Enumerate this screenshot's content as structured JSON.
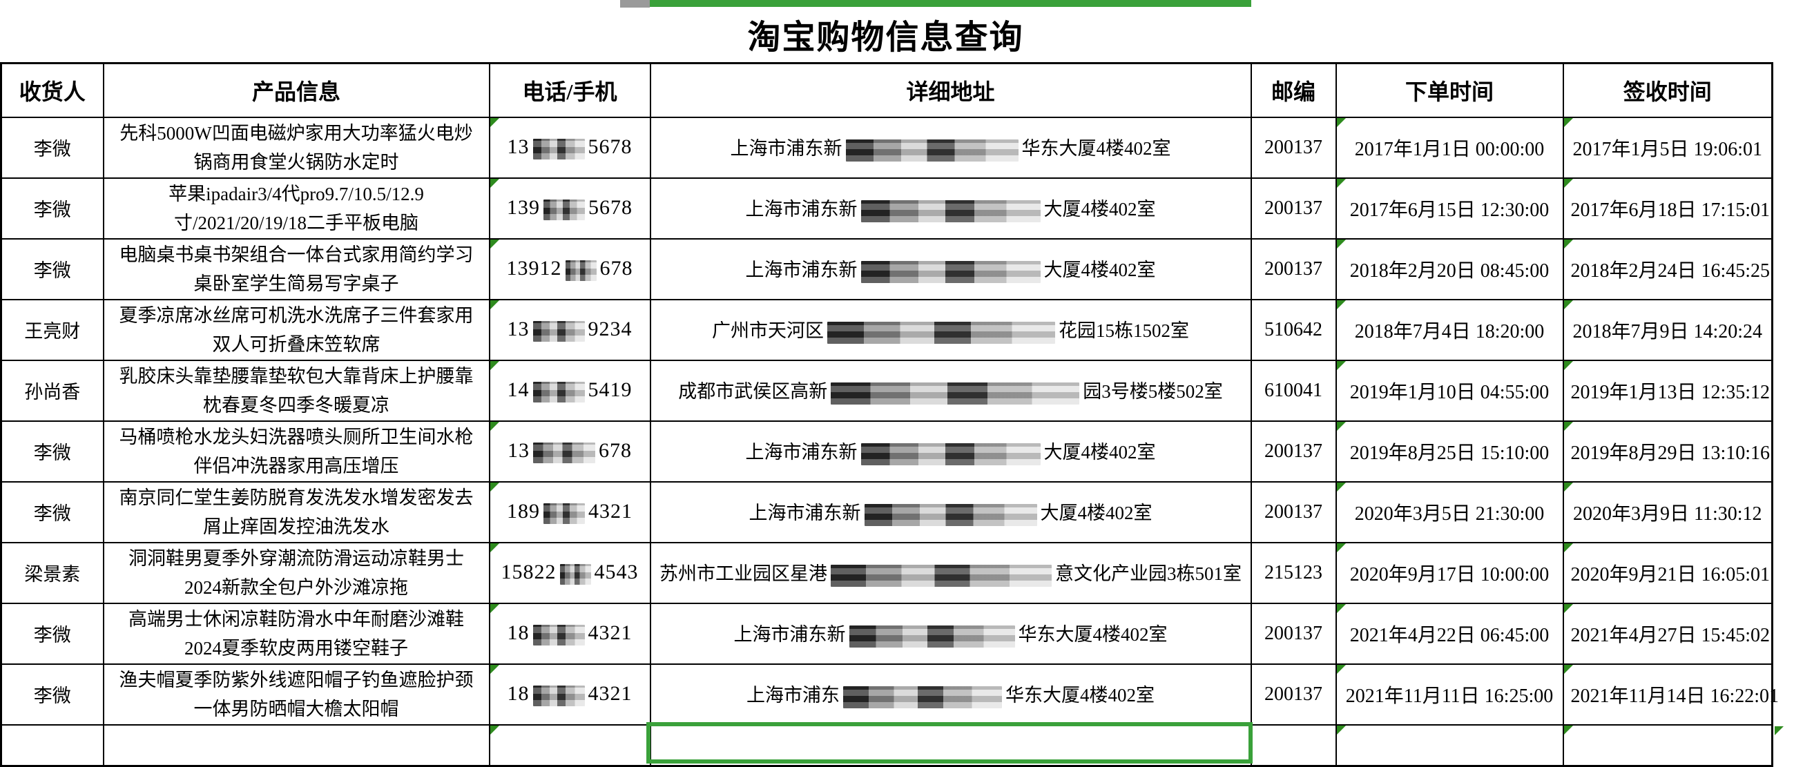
{
  "page": {
    "title": "淘宝购物信息查询"
  },
  "colors": {
    "selection_green": "#3aa13a",
    "triangle_green": "#2e8b1e"
  },
  "table": {
    "headers": [
      "收货人",
      "产品信息",
      "电话/手机",
      "详细地址",
      "邮编",
      "下单时间",
      "签收时间"
    ],
    "rows": [
      {
        "recipient": "李微",
        "product": "先科5000W凹面电磁炉家用大功率猛火电炒锅商用食堂火锅防水定时",
        "phone": {
          "prefix": "13",
          "suffix": "5678"
        },
        "address": {
          "prefix": "上海市浦东新",
          "suffix": "华东大厦4楼402室",
          "redact_w": 250
        },
        "postal": "200137",
        "order_time": "2017年1月1日 00:00:00",
        "sign_time": "2017年1月5日 19:06:01"
      },
      {
        "recipient": "李微",
        "product": "苹果ipadair3/4代pro9.7/10.5/12.9寸/2021/20/19/18二手平板电脑",
        "phone": {
          "prefix": "139",
          "suffix": "5678"
        },
        "address": {
          "prefix": "上海市浦东新",
          "suffix": "大厦4楼402室",
          "redact_w": 260
        },
        "postal": "200137",
        "order_time": "2017年6月15日 12:30:00",
        "sign_time": "2017年6月18日 17:15:01"
      },
      {
        "recipient": "李微",
        "product": "电脑桌书桌书架组合一体台式家用简约学习桌卧室学生简易写字桌子",
        "phone": {
          "prefix": "13912",
          "suffix": "678"
        },
        "address": {
          "prefix": "上海市浦东新",
          "suffix": "大厦4楼402室",
          "redact_w": 260
        },
        "postal": "200137",
        "order_time": "2018年2月20日 08:45:00",
        "sign_time": "2018年2月24日 16:45:25"
      },
      {
        "recipient": "王亮财",
        "product": "夏季凉席冰丝席可机洗水洗席子三件套家用双人可折叠床笠软席",
        "phone": {
          "prefix": "13",
          "suffix": "9234"
        },
        "address": {
          "prefix": "广州市天河区",
          "suffix": "花园15栋1502室",
          "redact_w": 330
        },
        "postal": "510642",
        "order_time": "2018年7月4日 18:20:00",
        "sign_time": "2018年7月9日 14:20:24"
      },
      {
        "recipient": "孙尚香",
        "product": "乳胶床头靠垫腰靠垫软包大靠背床上护腰靠枕春夏冬四季冬暖夏凉",
        "phone": {
          "prefix": "14",
          "suffix": "5419"
        },
        "address": {
          "prefix": "成都市武侯区高新",
          "suffix": "园3号楼5楼502室",
          "redact_w": 360
        },
        "postal": "610041",
        "order_time": "2019年1月10日 04:55:00",
        "sign_time": "2019年1月13日 12:35:12"
      },
      {
        "recipient": "李微",
        "product": "马桶喷枪水龙头妇洗器喷头厕所卫生间水枪伴侣冲洗器家用高压增压",
        "phone": {
          "prefix": "13",
          "suffix": "678"
        },
        "address": {
          "prefix": "上海市浦东新",
          "suffix": "大厦4楼402室",
          "redact_w": 260
        },
        "postal": "200137",
        "order_time": "2019年8月25日 15:10:00",
        "sign_time": "2019年8月29日 13:10:16"
      },
      {
        "recipient": "李微",
        "product": "南京同仁堂生姜防脱育发洗发水增发密发去屑止痒固发控油洗发水",
        "phone": {
          "prefix": "189",
          "suffix": "4321"
        },
        "address": {
          "prefix": "上海市浦东新",
          "suffix": "大厦4楼402室",
          "redact_w": 250
        },
        "postal": "200137",
        "order_time": "2020年3月5日 21:30:00",
        "sign_time": "2020年3月9日 11:30:12"
      },
      {
        "recipient": "梁景素",
        "product": "洞洞鞋男夏季外穿潮流防滑运动凉鞋男士2024新款全包户外沙滩凉拖",
        "phone": {
          "prefix": "15822",
          "suffix": "4543"
        },
        "address": {
          "prefix": "苏州市工业园区星港",
          "suffix": "意文化产业园3栋501室",
          "redact_w": 320
        },
        "postal": "215123",
        "order_time": "2020年9月17日 10:00:00",
        "sign_time": "2020年9月21日 16:05:01"
      },
      {
        "recipient": "李微",
        "product": "高端男士休闲凉鞋防滑水中年耐磨沙滩鞋2024夏季软皮两用镂空鞋子",
        "phone": {
          "prefix": "18",
          "suffix": "4321"
        },
        "address": {
          "prefix": "上海市浦东新",
          "suffix": "华东大厦4楼402室",
          "redact_w": 240
        },
        "postal": "200137",
        "order_time": "2021年4月22日 06:45:00",
        "sign_time": "2021年4月27日 15:45:02"
      },
      {
        "recipient": "李微",
        "product": "渔夫帽夏季防紫外线遮阳帽子钓鱼遮脸护颈一体男防晒帽大檐太阳帽",
        "phone": {
          "prefix": "18",
          "suffix": "4321"
        },
        "address": {
          "prefix": "上海市浦东",
          "suffix": "华东大厦4楼402室",
          "redact_w": 230
        },
        "postal": "200137",
        "order_time": "2021年11月11日 16:25:00",
        "sign_time": "2021年11月14日 16:22:01"
      }
    ]
  }
}
